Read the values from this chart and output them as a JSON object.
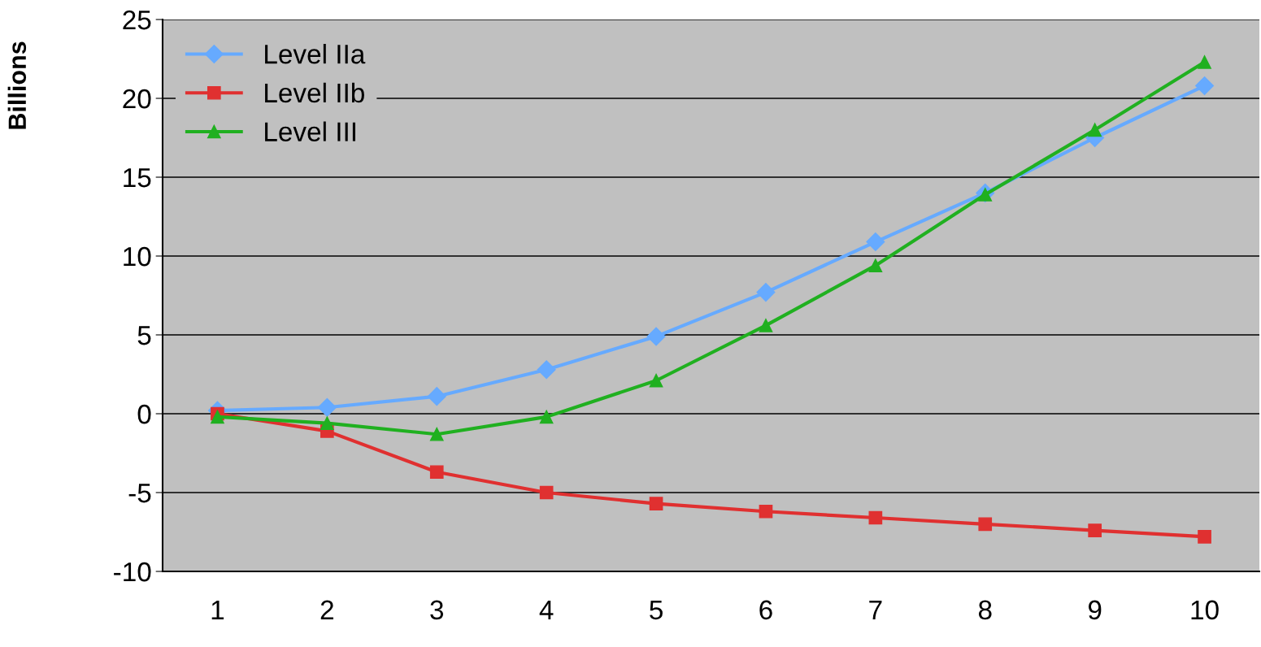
{
  "chart_data": {
    "type": "line",
    "ylabel": "Billions",
    "categories": [
      "1",
      "2",
      "3",
      "4",
      "5",
      "6",
      "7",
      "8",
      "9",
      "10"
    ],
    "series": [
      {
        "name": "Level IIa",
        "color": "#66aaff",
        "marker": "diamond",
        "values": [
          0.2,
          0.4,
          1.1,
          2.8,
          4.9,
          7.7,
          10.9,
          14.0,
          17.5,
          20.8
        ]
      },
      {
        "name": "Level IIb",
        "color": "#e03030",
        "marker": "square",
        "values": [
          0,
          -1.1,
          -3.7,
          -5.0,
          -5.7,
          -6.2,
          -6.6,
          -7.0,
          -7.4,
          -7.8
        ]
      },
      {
        "name": "Level III",
        "color": "#20b020",
        "marker": "triangle",
        "values": [
          -0.2,
          -0.6,
          -1.3,
          -0.2,
          2.1,
          5.6,
          9.4,
          13.9,
          18.0,
          22.3
        ]
      }
    ],
    "ylim": [
      -10,
      25
    ],
    "yticks": [
      -10,
      -5,
      0,
      5,
      10,
      15,
      20,
      25
    ],
    "grid": "y",
    "legend": "top left",
    "line_style": "solid"
  }
}
